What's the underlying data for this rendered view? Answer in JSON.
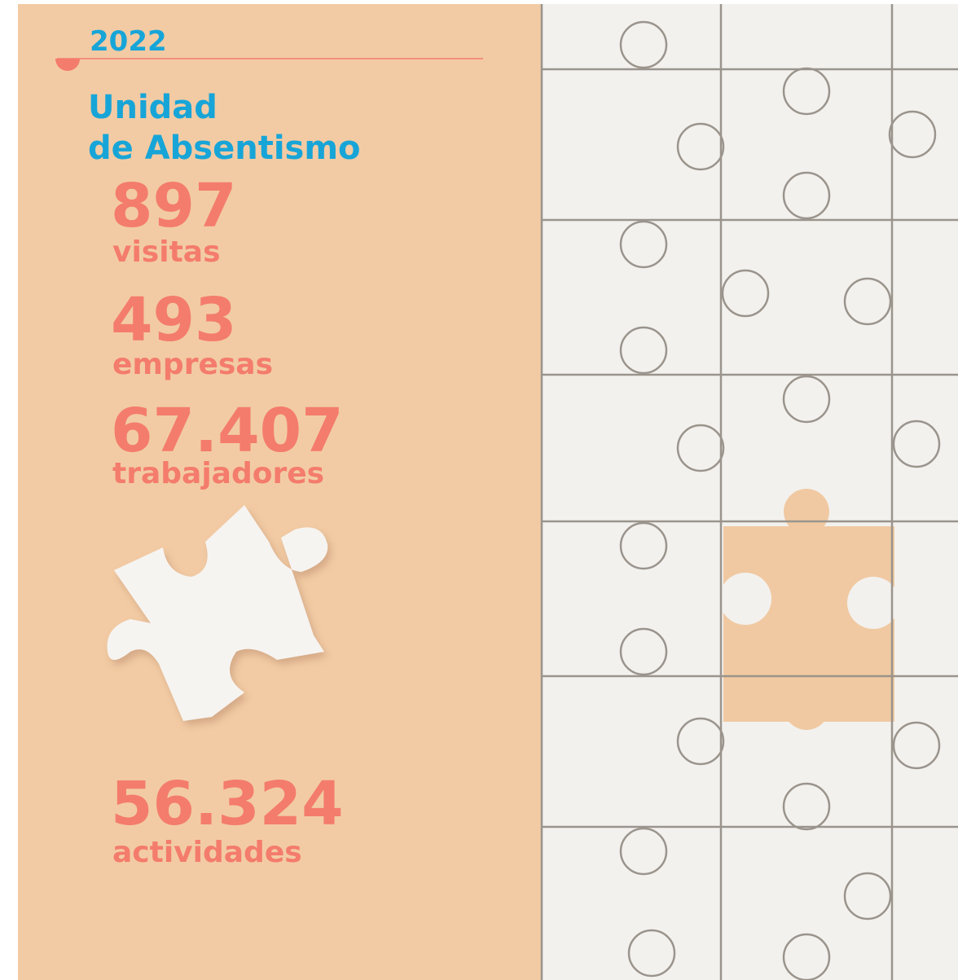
{
  "header": {
    "year": "2022",
    "title_lines": [
      "Unidad",
      "de Absentismo"
    ]
  },
  "stats": [
    {
      "value": "897",
      "label": "visitas"
    },
    {
      "value": "493",
      "label": "empresas"
    },
    {
      "value": "67.407",
      "label": "trabajadores"
    },
    {
      "value": "56.324",
      "label": "actividades"
    }
  ]
}
